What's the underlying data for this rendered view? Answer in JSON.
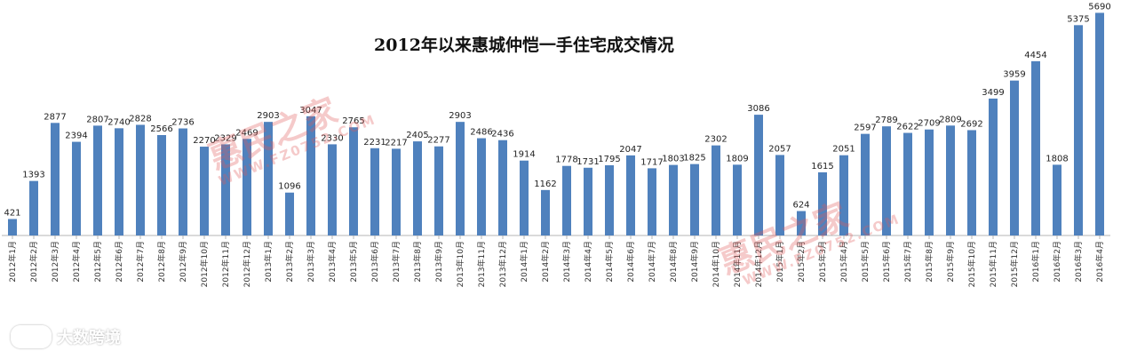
{
  "chart_data": {
    "type": "bar",
    "title": "2012年以来惠城仲恺一手住宅成交情况",
    "xlabel": "",
    "ylabel": "",
    "ylim": [
      0,
      5700
    ],
    "grid": false,
    "legend": "none",
    "bar_color": "#4f81bd",
    "categories": [
      "2012年1月",
      "2012年2月",
      "2012年3月",
      "2012年4月",
      "2012年5月",
      "2012年6月",
      "2012年7月",
      "2012年8月",
      "2012年9月",
      "2012年10月",
      "2012年11月",
      "2012年12月",
      "2013年1月",
      "2013年2月",
      "2013年3月",
      "2013年4月",
      "2013年5月",
      "2013年6月",
      "2013年7月",
      "2013年8月",
      "2013年9月",
      "2013年10月",
      "2013年11月",
      "2013年12月",
      "2014年1月",
      "2014年2月",
      "2014年3月",
      "2014年4月",
      "2014年5月",
      "2014年6月",
      "2014年7月",
      "2014年8月",
      "2014年9月",
      "2014年10月",
      "2014年11月",
      "2014年12月",
      "2015年1月",
      "2015年2月",
      "2015年3月",
      "2015年4月",
      "2015年5月",
      "2015年6月",
      "2015年7月",
      "2015年8月",
      "2015年9月",
      "2015年10月",
      "2015年11月",
      "2015年12月",
      "2016年1月",
      "2016年2月",
      "2016年3月",
      "2016年4月"
    ],
    "values": [
      421,
      1393,
      2877,
      2394,
      2807,
      2740,
      2828,
      2566,
      2736,
      2270,
      2329,
      2469,
      2903,
      1096,
      3047,
      2330,
      2765,
      2231,
      2217,
      2405,
      2277,
      2903,
      2486,
      2436,
      1914,
      1162,
      1778,
      1731,
      1795,
      2047,
      1717,
      1803,
      1825,
      2302,
      1809,
      3086,
      2057,
      624,
      1615,
      2051,
      2597,
      2789,
      2622,
      2709,
      2809,
      2692,
      3499,
      3959,
      4454,
      1808,
      5375,
      5690
    ]
  },
  "watermarks": {
    "brand": "惠民之家",
    "url": "WWW.FZ0752.COM"
  },
  "footer_logo": {
    "text": "大数跨境"
  }
}
